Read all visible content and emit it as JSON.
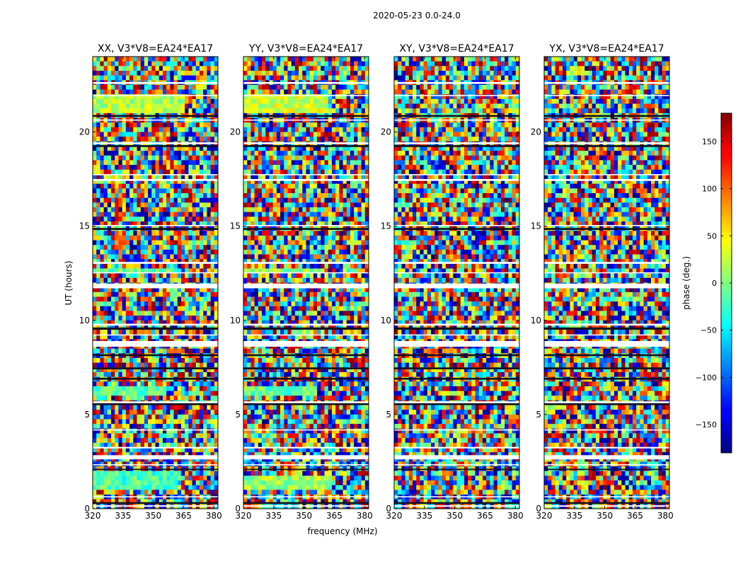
{
  "chart_data": {
    "type": "heatmap",
    "suptitle": "2020-05-23 0.0-24.0",
    "xlabel": "frequency (MHz)",
    "ylabel": "UT (hours)",
    "xlim": [
      320,
      382
    ],
    "ylim": [
      0,
      24
    ],
    "xticks": [
      320,
      335,
      350,
      365,
      380
    ],
    "yticks": [
      0,
      5,
      10,
      15,
      20
    ],
    "colormap": "jet",
    "colorbar": {
      "label": "phase (deg.)",
      "range": [
        -180,
        180
      ],
      "ticks": [
        -150,
        -100,
        -50,
        0,
        50,
        100,
        150
      ],
      "ticklabels": [
        "−150",
        "−100",
        "−50",
        "0",
        "50",
        "100",
        "150"
      ]
    },
    "panels": [
      {
        "title": "XX, V3*V8=EA24*EA17",
        "coherent": [
          {
            "t0": 21.0,
            "t1": 22.1,
            "f1": 366,
            "phase": 20
          },
          {
            "t0": 1.1,
            "t1": 2.0,
            "f1": 362,
            "phase": -20
          },
          {
            "t0": 6.0,
            "t1": 6.6,
            "f1": 356,
            "phase": -15
          },
          {
            "t0": 12.4,
            "t1": 12.8,
            "f1": 360,
            "phase": -5
          }
        ]
      },
      {
        "title": "YY, V3*V8=EA24*EA17",
        "coherent": [
          {
            "t0": 21.0,
            "t1": 22.1,
            "f1": 362,
            "phase": 30
          },
          {
            "t0": 0.9,
            "t1": 1.8,
            "f1": 364,
            "phase": 10
          },
          {
            "t0": 6.0,
            "t1": 6.6,
            "f1": 356,
            "phase": -10
          },
          {
            "t0": 12.4,
            "t1": 12.8,
            "f1": 360,
            "phase": 5
          }
        ]
      },
      {
        "title": "XY, V3*V8=EA24*EA17",
        "coherent": []
      },
      {
        "title": "YX, V3*V8=EA24*EA17",
        "coherent": []
      }
    ],
    "gaps_hours": [
      [
        0.1,
        0.18
      ],
      [
        0.6,
        0.66
      ],
      [
        2.3,
        2.36
      ],
      [
        2.62,
        2.84
      ],
      [
        3.2,
        3.28
      ],
      [
        4.15,
        4.21
      ],
      [
        5.6,
        5.7
      ],
      [
        8.6,
        8.9
      ],
      [
        9.2,
        9.25
      ],
      [
        9.72,
        9.82
      ],
      [
        11.7,
        11.95
      ],
      [
        12.5,
        12.55
      ],
      [
        13.0,
        13.1
      ],
      [
        15.0,
        15.06
      ],
      [
        17.4,
        17.5
      ],
      [
        17.7,
        17.76
      ],
      [
        19.35,
        19.45
      ],
      [
        20.6,
        20.66
      ],
      [
        21.9,
        21.96
      ],
      [
        22.55,
        22.65
      ]
    ],
    "dark_bands_hours": [
      [
        0.25,
        0.35
      ],
      [
        2.05,
        2.12
      ],
      [
        5.5,
        5.6
      ],
      [
        6.85,
        6.95
      ],
      [
        7.4,
        7.5
      ],
      [
        8.1,
        8.2
      ],
      [
        9.5,
        9.62
      ],
      [
        14.8,
        14.9
      ],
      [
        19.2,
        19.3
      ],
      [
        20.8,
        20.9
      ]
    ]
  }
}
